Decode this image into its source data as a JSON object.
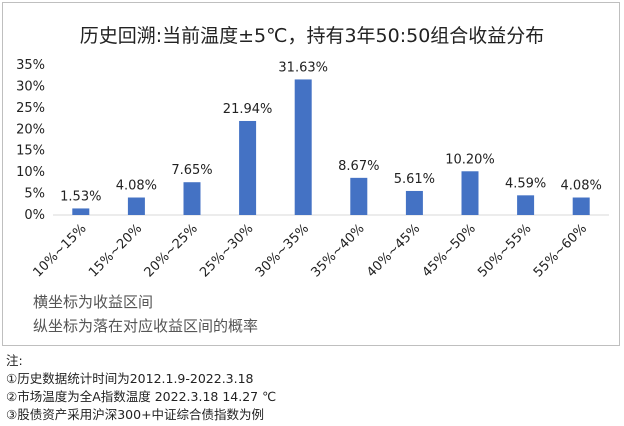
{
  "title": "历史回溯:当前温度±5℃，持有3年50:50组合收益分布",
  "chart_data": {
    "type": "bar",
    "categories": [
      "10%~15%",
      "15%~20%",
      "20%~25%",
      "25%~30%",
      "30%~35%",
      "35%~40%",
      "40%~45%",
      "45%~50%",
      "50%~55%",
      "55%~60%"
    ],
    "values": [
      1.53,
      4.08,
      7.65,
      21.94,
      31.63,
      8.67,
      5.61,
      10.2,
      4.59,
      4.08
    ],
    "data_labels": [
      "1.53%",
      "4.08%",
      "7.65%",
      "21.94%",
      "31.63%",
      "8.67%",
      "5.61%",
      "10.20%",
      "4.59%",
      "4.08%"
    ],
    "yticks": [
      "0%",
      "5%",
      "10%",
      "15%",
      "20%",
      "25%",
      "30%",
      "35%"
    ],
    "ylim": [
      0,
      35
    ],
    "bar_color": "#4472C4",
    "grid": false,
    "legend": "none"
  },
  "descriptions": {
    "x_axis": "横坐标为收益区间",
    "y_axis": "纵坐标为落在对应收益区间的概率"
  },
  "notes": {
    "header": "注:",
    "items": [
      "①历史数据统计时间为2012.1.9-2022.3.18",
      "②市场温度为全A指数温度 2022.3.18     14.27 ℃",
      "③股债资产采用沪深300+中证综合债指数为例"
    ]
  }
}
